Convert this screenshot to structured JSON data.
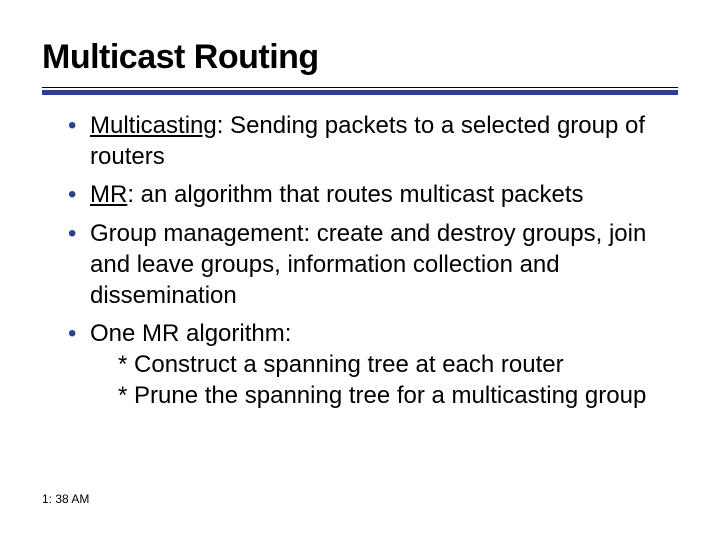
{
  "colors": {
    "bullet": "#2b3f8f",
    "accent_rule": "#2b3f8f",
    "text": "#000000",
    "background": "#ffffff"
  },
  "title": "Multicast Routing",
  "bullets": [
    {
      "term": "Multicasting",
      "rest": ": Sending packets to a selected group of routers"
    },
    {
      "term": "MR",
      "rest": ": an algorithm that routes multicast packets"
    },
    {
      "plain": "Group management: create and destroy groups, join and leave groups, information collection and dissemination"
    },
    {
      "plain": "One MR algorithm:",
      "subs": [
        "* Construct a spanning tree at each router",
        "* Prune the spanning tree for a multicasting group"
      ]
    }
  ],
  "timestamp": "1: 38 AM"
}
